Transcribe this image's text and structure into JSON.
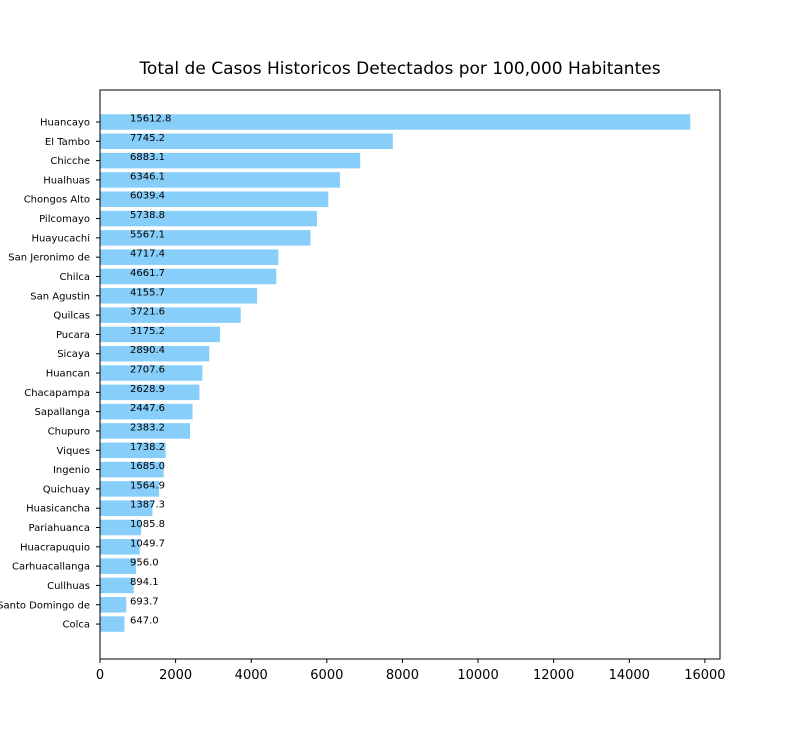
{
  "chart_data": {
    "type": "bar",
    "orientation": "horizontal",
    "title": "Total de Casos Historicos Detectados por 100,000 Habitantes",
    "xlabel": "",
    "ylabel": "",
    "xlim": [
      0,
      16400
    ],
    "x_ticks": [
      0,
      2000,
      4000,
      6000,
      8000,
      10000,
      12000,
      14000,
      16000
    ],
    "grid": false,
    "bar_color": "#87cefa",
    "categories": [
      "Huancayo",
      "El Tambo",
      "Chicche",
      "Hualhuas",
      "Chongos Alto",
      "Pilcomayo",
      "Huayucachi",
      "San Jeronimo de ",
      "Chilca",
      "San Agustin",
      "Quilcas",
      "Pucara",
      "Sicaya",
      "Huancan",
      "Chacapampa",
      "Sapallanga",
      "Chupuro",
      "Viques",
      "Ingenio",
      "Quichuay",
      "Huasicancha",
      "Pariahuanca",
      "Huacrapuquio",
      "Carhuacallanga",
      "Cullhuas",
      "Santo Domingo de",
      "Colca"
    ],
    "values": [
      15612.8,
      7745.2,
      6883.1,
      6346.1,
      6039.4,
      5738.8,
      5567.1,
      4717.4,
      4661.7,
      4155.7,
      3721.6,
      3175.2,
      2890.4,
      2707.6,
      2628.9,
      2447.6,
      2383.2,
      1738.2,
      1685.0,
      1564.9,
      1387.3,
      1085.8,
      1049.7,
      956.0,
      894.1,
      693.7,
      647.0
    ],
    "value_labels": [
      "15612.8",
      "7745.2",
      "6883.1",
      "6346.1",
      "6039.4",
      "5738.8",
      "5567.1",
      "4717.4",
      "4661.7",
      "4155.7",
      "3721.6",
      "3175.2",
      "2890.4",
      "2707.6",
      "2628.9",
      "2447.6",
      "2383.2",
      "1738.2",
      "1685.0",
      "1564.9",
      "1387.3",
      "1085.8",
      "1049.7",
      "956.0",
      "894.1",
      "693.7",
      "647.0"
    ]
  }
}
